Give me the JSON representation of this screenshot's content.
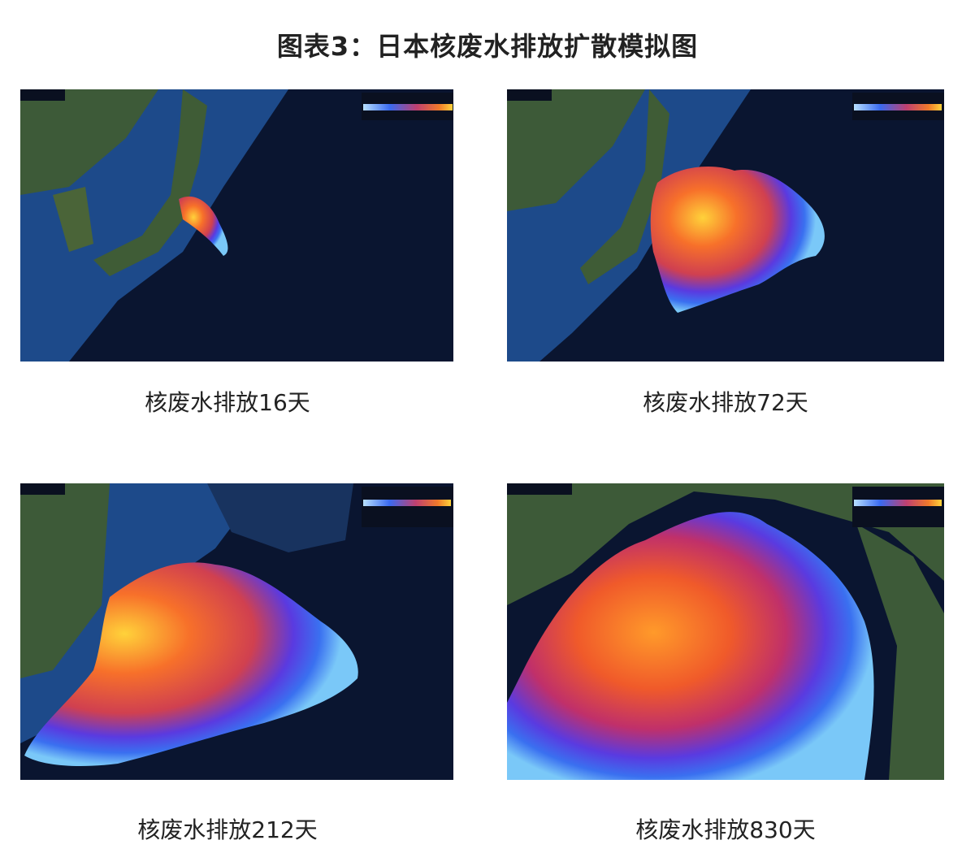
{
  "title": "图表3：日本核废水排放扩散模拟图",
  "panels": [
    {
      "caption": "核废水排放16天"
    },
    {
      "caption": "核废水排放72天"
    },
    {
      "caption": "核废水排放212天"
    },
    {
      "caption": "核废水排放830天"
    }
  ]
}
